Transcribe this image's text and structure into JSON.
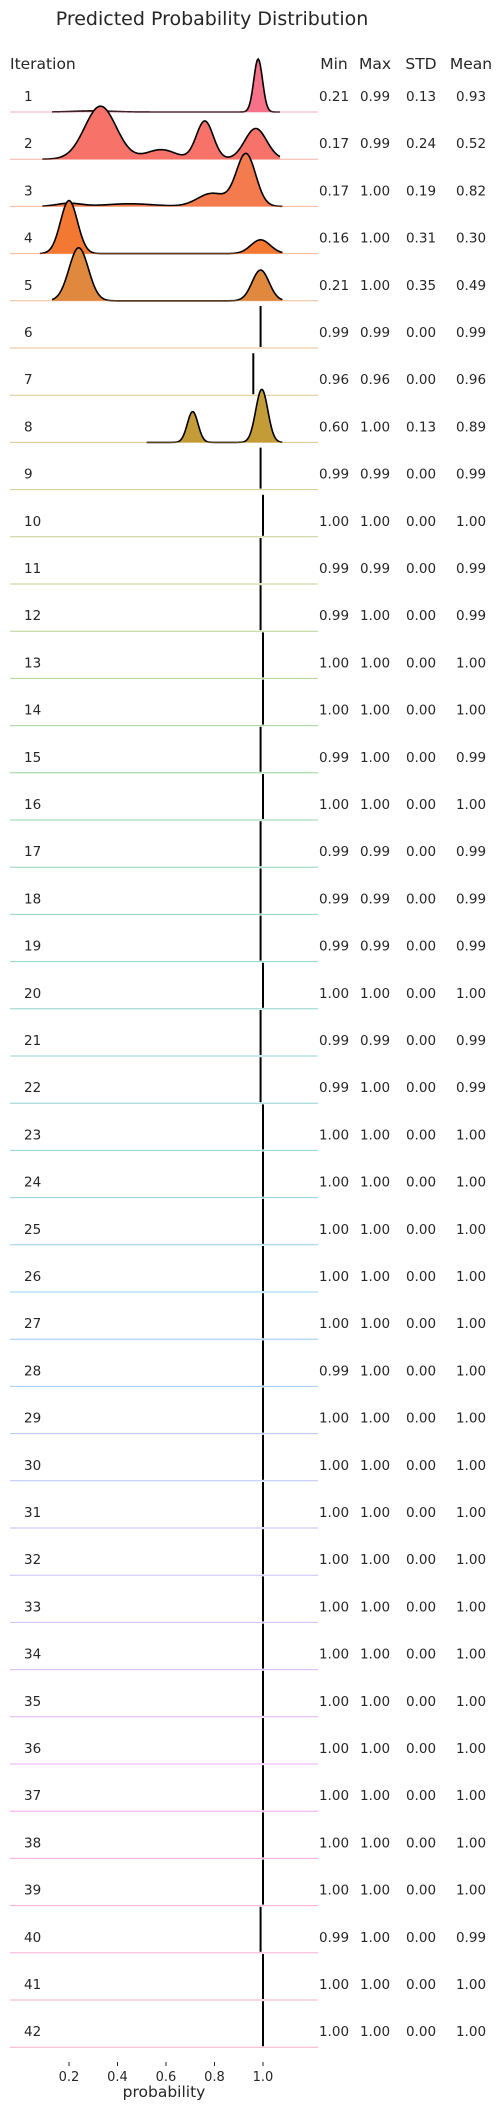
{
  "chart_data": {
    "type": "ridgeline",
    "title": "Predicted Probability Distribution",
    "xlabel": "probability",
    "xlim": [
      0.06,
      1.15
    ],
    "xticks": [
      0.2,
      0.4,
      0.6,
      0.8,
      1.0
    ],
    "xtick_labels": [
      "0.2",
      "0.4",
      "0.6",
      "0.8",
      "1.0"
    ],
    "columns": {
      "iteration": "Iteration",
      "min": "Min",
      "max": "Max",
      "std": "STD",
      "mean": "Mean"
    },
    "iterations": [
      {
        "label": "1",
        "min": "0.21",
        "max": "0.99",
        "std": "0.13",
        "mean": "0.93",
        "color": "#f77189",
        "modes": [
          {
            "c": 0.98,
            "w": 0.018,
            "h": 1.0
          },
          {
            "c": 0.3,
            "w": 0.08,
            "h": 0.02
          }
        ]
      },
      {
        "label": "2",
        "min": "0.17",
        "max": "0.99",
        "std": "0.24",
        "mean": "0.52",
        "color": "#f7736a",
        "modes": [
          {
            "c": 0.33,
            "w": 0.065,
            "h": 1.0
          },
          {
            "c": 0.76,
            "w": 0.035,
            "h": 0.72
          },
          {
            "c": 0.58,
            "w": 0.06,
            "h": 0.18
          },
          {
            "c": 0.97,
            "w": 0.045,
            "h": 0.58
          }
        ]
      },
      {
        "label": "3",
        "min": "0.17",
        "max": "1.00",
        "std": "0.19",
        "mean": "0.82",
        "color": "#f37b4d",
        "modes": [
          {
            "c": 0.93,
            "w": 0.04,
            "h": 1.0
          },
          {
            "c": 0.79,
            "w": 0.06,
            "h": 0.25
          },
          {
            "c": 0.2,
            "w": 0.05,
            "h": 0.06
          },
          {
            "c": 0.45,
            "w": 0.1,
            "h": 0.05
          }
        ]
      },
      {
        "label": "4",
        "min": "0.16",
        "max": "1.00",
        "std": "0.31",
        "mean": "0.30",
        "color": "#f37932",
        "modes": [
          {
            "c": 0.2,
            "w": 0.035,
            "h": 1.0
          },
          {
            "c": 0.99,
            "w": 0.04,
            "h": 0.26
          }
        ]
      },
      {
        "label": "5",
        "min": "0.21",
        "max": "1.00",
        "std": "0.35",
        "mean": "0.49",
        "color": "#e1883f",
        "modes": [
          {
            "c": 0.24,
            "w": 0.04,
            "h": 1.0
          },
          {
            "c": 0.99,
            "w": 0.035,
            "h": 0.58
          }
        ]
      },
      {
        "label": "6",
        "min": "0.99",
        "max": "0.99",
        "std": "0.00",
        "mean": "0.99",
        "color": "#d1923a"
      },
      {
        "label": "7",
        "min": "0.96",
        "max": "0.96",
        "std": "0.00",
        "mean": "0.96",
        "color": "#c29b38"
      },
      {
        "label": "8",
        "min": "0.60",
        "max": "1.00",
        "std": "0.13",
        "mean": "0.89",
        "color": "#c39b37",
        "modes": [
          {
            "c": 0.995,
            "w": 0.025,
            "h": 1.0
          },
          {
            "c": 0.71,
            "w": 0.022,
            "h": 0.58
          }
        ]
      },
      {
        "label": "9",
        "min": "0.99",
        "max": "0.99",
        "std": "0.00",
        "mean": "0.99",
        "color": "#aaa23a"
      },
      {
        "label": "10",
        "min": "1.00",
        "max": "1.00",
        "std": "0.00",
        "mean": "1.00",
        "color": "#9ea73b"
      },
      {
        "label": "11",
        "min": "0.99",
        "max": "0.99",
        "std": "0.00",
        "mean": "0.99",
        "color": "#91ab3c"
      },
      {
        "label": "12",
        "min": "0.99",
        "max": "1.00",
        "std": "0.00",
        "mean": "0.99",
        "color": "#80ae3e"
      },
      {
        "label": "13",
        "min": "1.00",
        "max": "1.00",
        "std": "0.00",
        "mean": "1.00",
        "color": "#6bb13f"
      },
      {
        "label": "14",
        "min": "1.00",
        "max": "1.00",
        "std": "0.00",
        "mean": "1.00",
        "color": "#4fb43f"
      },
      {
        "label": "15",
        "min": "0.99",
        "max": "1.00",
        "std": "0.00",
        "mean": "0.99",
        "color": "#3db54b"
      },
      {
        "label": "16",
        "min": "1.00",
        "max": "1.00",
        "std": "0.00",
        "mean": "1.00",
        "color": "#37b567"
      },
      {
        "label": "17",
        "min": "0.99",
        "max": "0.99",
        "std": "0.00",
        "mean": "0.99",
        "color": "#36b47a"
      },
      {
        "label": "18",
        "min": "0.99",
        "max": "0.99",
        "std": "0.00",
        "mean": "0.99",
        "color": "#37b489"
      },
      {
        "label": "19",
        "min": "0.99",
        "max": "0.99",
        "std": "0.00",
        "mean": "0.99",
        "color": "#38b395"
      },
      {
        "label": "20",
        "min": "1.00",
        "max": "1.00",
        "std": "0.00",
        "mean": "1.00",
        "color": "#38b2a0"
      },
      {
        "label": "21",
        "min": "0.99",
        "max": "0.99",
        "std": "0.00",
        "mean": "0.99",
        "color": "#39b1aa"
      },
      {
        "label": "22",
        "min": "0.99",
        "max": "1.00",
        "std": "0.00",
        "mean": "0.99",
        "color": "#3ab0b3"
      },
      {
        "label": "23",
        "min": "1.00",
        "max": "1.00",
        "std": "0.00",
        "mean": "1.00",
        "color": "#3bafbc"
      },
      {
        "label": "24",
        "min": "1.00",
        "max": "1.00",
        "std": "0.00",
        "mean": "1.00",
        "color": "#3caec6"
      },
      {
        "label": "25",
        "min": "1.00",
        "max": "1.00",
        "std": "0.00",
        "mean": "1.00",
        "color": "#3dacd0"
      },
      {
        "label": "26",
        "min": "1.00",
        "max": "1.00",
        "std": "0.00",
        "mean": "1.00",
        "color": "#3faadb"
      },
      {
        "label": "27",
        "min": "1.00",
        "max": "1.00",
        "std": "0.00",
        "mean": "1.00",
        "color": "#45a7e7"
      },
      {
        "label": "28",
        "min": "0.99",
        "max": "1.00",
        "std": "0.00",
        "mean": "1.00",
        "color": "#56a3ef"
      },
      {
        "label": "29",
        "min": "1.00",
        "max": "1.00",
        "std": "0.00",
        "mean": "1.00",
        "color": "#6c9ef4"
      },
      {
        "label": "30",
        "min": "1.00",
        "max": "1.00",
        "std": "0.00",
        "mean": "1.00",
        "color": "#8098f4"
      },
      {
        "label": "31",
        "min": "1.00",
        "max": "1.00",
        "std": "0.00",
        "mean": "1.00",
        "color": "#9292f4"
      },
      {
        "label": "32",
        "min": "1.00",
        "max": "1.00",
        "std": "0.00",
        "mean": "1.00",
        "color": "#a28bf4"
      },
      {
        "label": "33",
        "min": "1.00",
        "max": "1.00",
        "std": "0.00",
        "mean": "1.00",
        "color": "#b384f4"
      },
      {
        "label": "34",
        "min": "1.00",
        "max": "1.00",
        "std": "0.00",
        "mean": "1.00",
        "color": "#c47bf4"
      },
      {
        "label": "35",
        "min": "1.00",
        "max": "1.00",
        "std": "0.00",
        "mean": "1.00",
        "color": "#d371f4"
      },
      {
        "label": "36",
        "min": "1.00",
        "max": "1.00",
        "std": "0.00",
        "mean": "1.00",
        "color": "#e365f4"
      },
      {
        "label": "37",
        "min": "1.00",
        "max": "1.00",
        "std": "0.00",
        "mean": "1.00",
        "color": "#f061e8"
      },
      {
        "label": "38",
        "min": "1.00",
        "max": "1.00",
        "std": "0.00",
        "mean": "1.00",
        "color": "#f465d8"
      },
      {
        "label": "39",
        "min": "1.00",
        "max": "1.00",
        "std": "0.00",
        "mean": "1.00",
        "color": "#f469c9"
      },
      {
        "label": "40",
        "min": "0.99",
        "max": "1.00",
        "std": "0.00",
        "mean": "0.99",
        "color": "#f56cb9"
      },
      {
        "label": "41",
        "min": "1.00",
        "max": "1.00",
        "std": "0.00",
        "mean": "1.00",
        "color": "#f56ea8"
      },
      {
        "label": "42",
        "min": "1.00",
        "max": "1.00",
        "std": "0.00",
        "mean": "1.00",
        "color": "#f67095"
      }
    ]
  }
}
